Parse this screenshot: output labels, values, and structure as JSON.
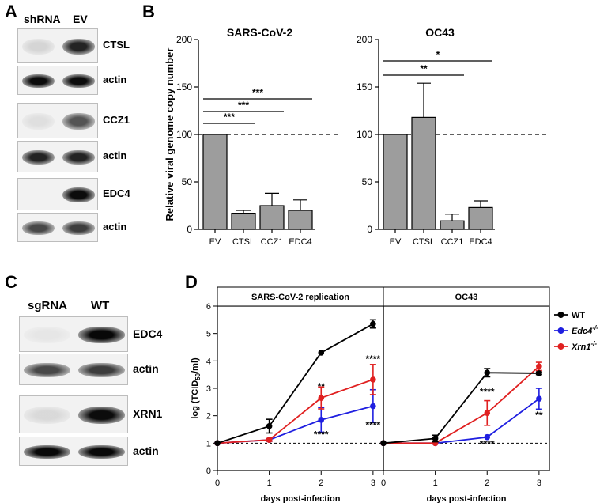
{
  "panels": {
    "A": "A",
    "B": "B",
    "C": "C",
    "D": "D"
  },
  "blotA": {
    "lanes": [
      "shRNA",
      "EV"
    ],
    "rows": [
      {
        "label": "CTSL",
        "bands": [
          0.12,
          0.85
        ]
      },
      {
        "label": "actin",
        "bands": [
          0.95,
          0.95
        ]
      },
      {
        "label": "CCZ1",
        "bands": [
          0.08,
          0.65
        ]
      },
      {
        "label": "actin",
        "bands": [
          0.85,
          0.85
        ]
      },
      {
        "label": "EDC4",
        "bands": [
          0.0,
          0.95
        ]
      },
      {
        "label": "actin",
        "bands": [
          0.7,
          0.75
        ]
      }
    ]
  },
  "blotC": {
    "lanes": [
      "sgRNA",
      "WT"
    ],
    "rows": [
      {
        "label": "EDC4",
        "bands": [
          0.05,
          0.97
        ]
      },
      {
        "label": "actin",
        "bands": [
          0.7,
          0.75
        ]
      },
      {
        "label": "XRN1",
        "bands": [
          0.1,
          0.95
        ]
      },
      {
        "label": "actin",
        "bands": [
          0.97,
          0.97
        ]
      }
    ]
  },
  "chart_data": [
    {
      "type": "bar",
      "title": "SARS-CoV-2",
      "ylabel": "Relative viral genome copy number",
      "categories": [
        "EV",
        "CTSL",
        "CCZ1",
        "EDC4"
      ],
      "values": [
        100,
        17,
        25,
        20
      ],
      "errors": [
        0,
        3,
        13,
        11
      ],
      "ylim": [
        0,
        200
      ],
      "yticks": [
        0,
        50,
        100,
        150,
        200
      ],
      "reference_line": 100,
      "significance": [
        {
          "from": "EV",
          "to": "CTSL",
          "label": "***"
        },
        {
          "from": "EV",
          "to": "CCZ1",
          "label": "***"
        },
        {
          "from": "EV",
          "to": "EDC4",
          "label": "***"
        }
      ]
    },
    {
      "type": "bar",
      "title": "OC43",
      "categories": [
        "EV",
        "CTSL",
        "CCZ1",
        "EDC4"
      ],
      "values": [
        100,
        118,
        9,
        23
      ],
      "errors": [
        0,
        36,
        7,
        7
      ],
      "ylim": [
        0,
        200
      ],
      "yticks": [
        0,
        50,
        100,
        150,
        200
      ],
      "reference_line": 100,
      "significance": [
        {
          "from": "EV",
          "to": "CCZ1",
          "label": "**"
        },
        {
          "from": "EV",
          "to": "EDC4",
          "label": "*"
        }
      ]
    },
    {
      "type": "line",
      "title": "SARS-CoV-2 replication",
      "xlabel": "days post-infection",
      "ylabel": "log (TCID50/ml)",
      "x": [
        0,
        1,
        2,
        3
      ],
      "xlim": [
        0,
        3.2
      ],
      "ylim": [
        0,
        6
      ],
      "yticks": [
        0,
        1,
        2,
        3,
        4,
        5,
        6
      ],
      "reference_line": 1,
      "series": [
        {
          "name": "WT",
          "color": "#000000",
          "values": [
            1,
            1.62,
            4.3,
            5.35
          ],
          "errors": [
            0,
            0.25,
            0.03,
            0.15
          ]
        },
        {
          "name": "Edc4-/-",
          "color": "#1f1fe0",
          "values": [
            1,
            1.12,
            1.85,
            2.35
          ],
          "errors": [
            0,
            0.05,
            0.45,
            0.6
          ]
        },
        {
          "name": "Xrn1-/-",
          "color": "#e02020",
          "values": [
            1,
            1.12,
            2.65,
            3.32
          ],
          "errors": [
            0,
            0.05,
            0.4,
            0.55
          ]
        }
      ],
      "annotations": [
        {
          "x": 2,
          "y": 2.95,
          "label": "**"
        },
        {
          "x": 2,
          "y": 1.2,
          "label": "****"
        },
        {
          "x": 3,
          "y": 3.95,
          "label": "****"
        },
        {
          "x": 3,
          "y": 1.55,
          "label": "****"
        }
      ]
    },
    {
      "type": "line",
      "title": "OC43",
      "xlabel": "days post-infection",
      "x": [
        0,
        1,
        2,
        3
      ],
      "xlim": [
        0,
        3.2
      ],
      "ylim": [
        0,
        6
      ],
      "reference_line": 1,
      "series": [
        {
          "name": "WT",
          "color": "#000000",
          "values": [
            1,
            1.17,
            3.57,
            3.55
          ],
          "errors": [
            0,
            0.12,
            0.15,
            0.05
          ]
        },
        {
          "name": "Edc4-/-",
          "color": "#1f1fe0",
          "values": [
            1,
            1.0,
            1.22,
            2.62
          ],
          "errors": [
            0,
            0.02,
            0.04,
            0.38
          ]
        },
        {
          "name": "Xrn1-/-",
          "color": "#e02020",
          "values": [
            1,
            1.0,
            2.1,
            3.8
          ],
          "errors": [
            0,
            0.02,
            0.45,
            0.15
          ]
        }
      ],
      "annotations": [
        {
          "x": 2,
          "y": 2.75,
          "label": "****"
        },
        {
          "x": 2,
          "y": 0.85,
          "label": "****"
        },
        {
          "x": 3,
          "y": 1.9,
          "label": "**"
        }
      ]
    }
  ],
  "legend": [
    {
      "name": "WT",
      "italic_base": "",
      "sup": "",
      "color": "#000000"
    },
    {
      "name": "Edc4-/-",
      "italic_base": "Edc4",
      "sup": "-/-",
      "color": "#1f1fe0"
    },
    {
      "name": "Xrn1-/-",
      "italic_base": "Xrn1",
      "sup": "-/-",
      "color": "#e02020"
    }
  ],
  "ylabelD": {
    "pre": "log (TCID",
    "sub": "50",
    "post": "/ml)"
  }
}
